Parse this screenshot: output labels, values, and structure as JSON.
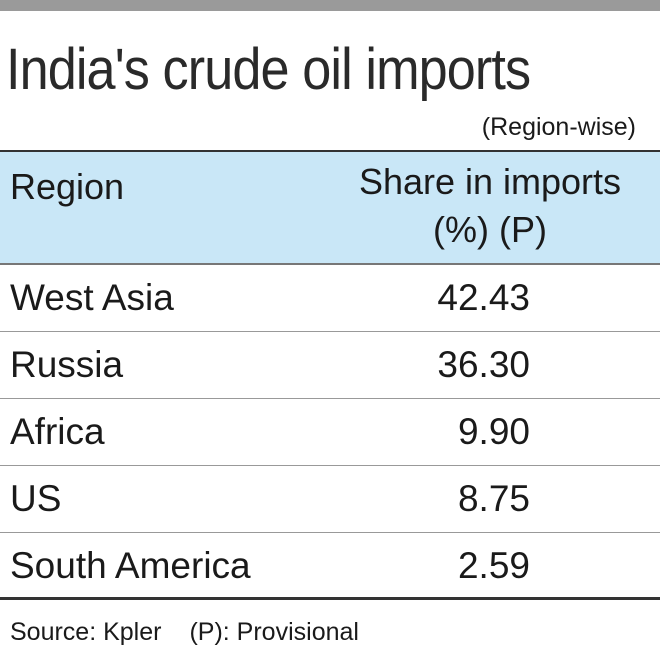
{
  "header": {
    "title": "India's crude oil imports",
    "subtitle": "(Region-wise)"
  },
  "table": {
    "columns": [
      "Region",
      "Share in imports (%) (P)"
    ],
    "rows": [
      [
        "West Asia",
        "42.43"
      ],
      [
        "Russia",
        "36.30"
      ],
      [
        "Africa",
        "9.90"
      ],
      [
        "US",
        "8.75"
      ],
      [
        "South America",
        "2.59"
      ]
    ]
  },
  "footer": {
    "source": "Source: Kpler",
    "note": "(P): Provisional"
  }
}
